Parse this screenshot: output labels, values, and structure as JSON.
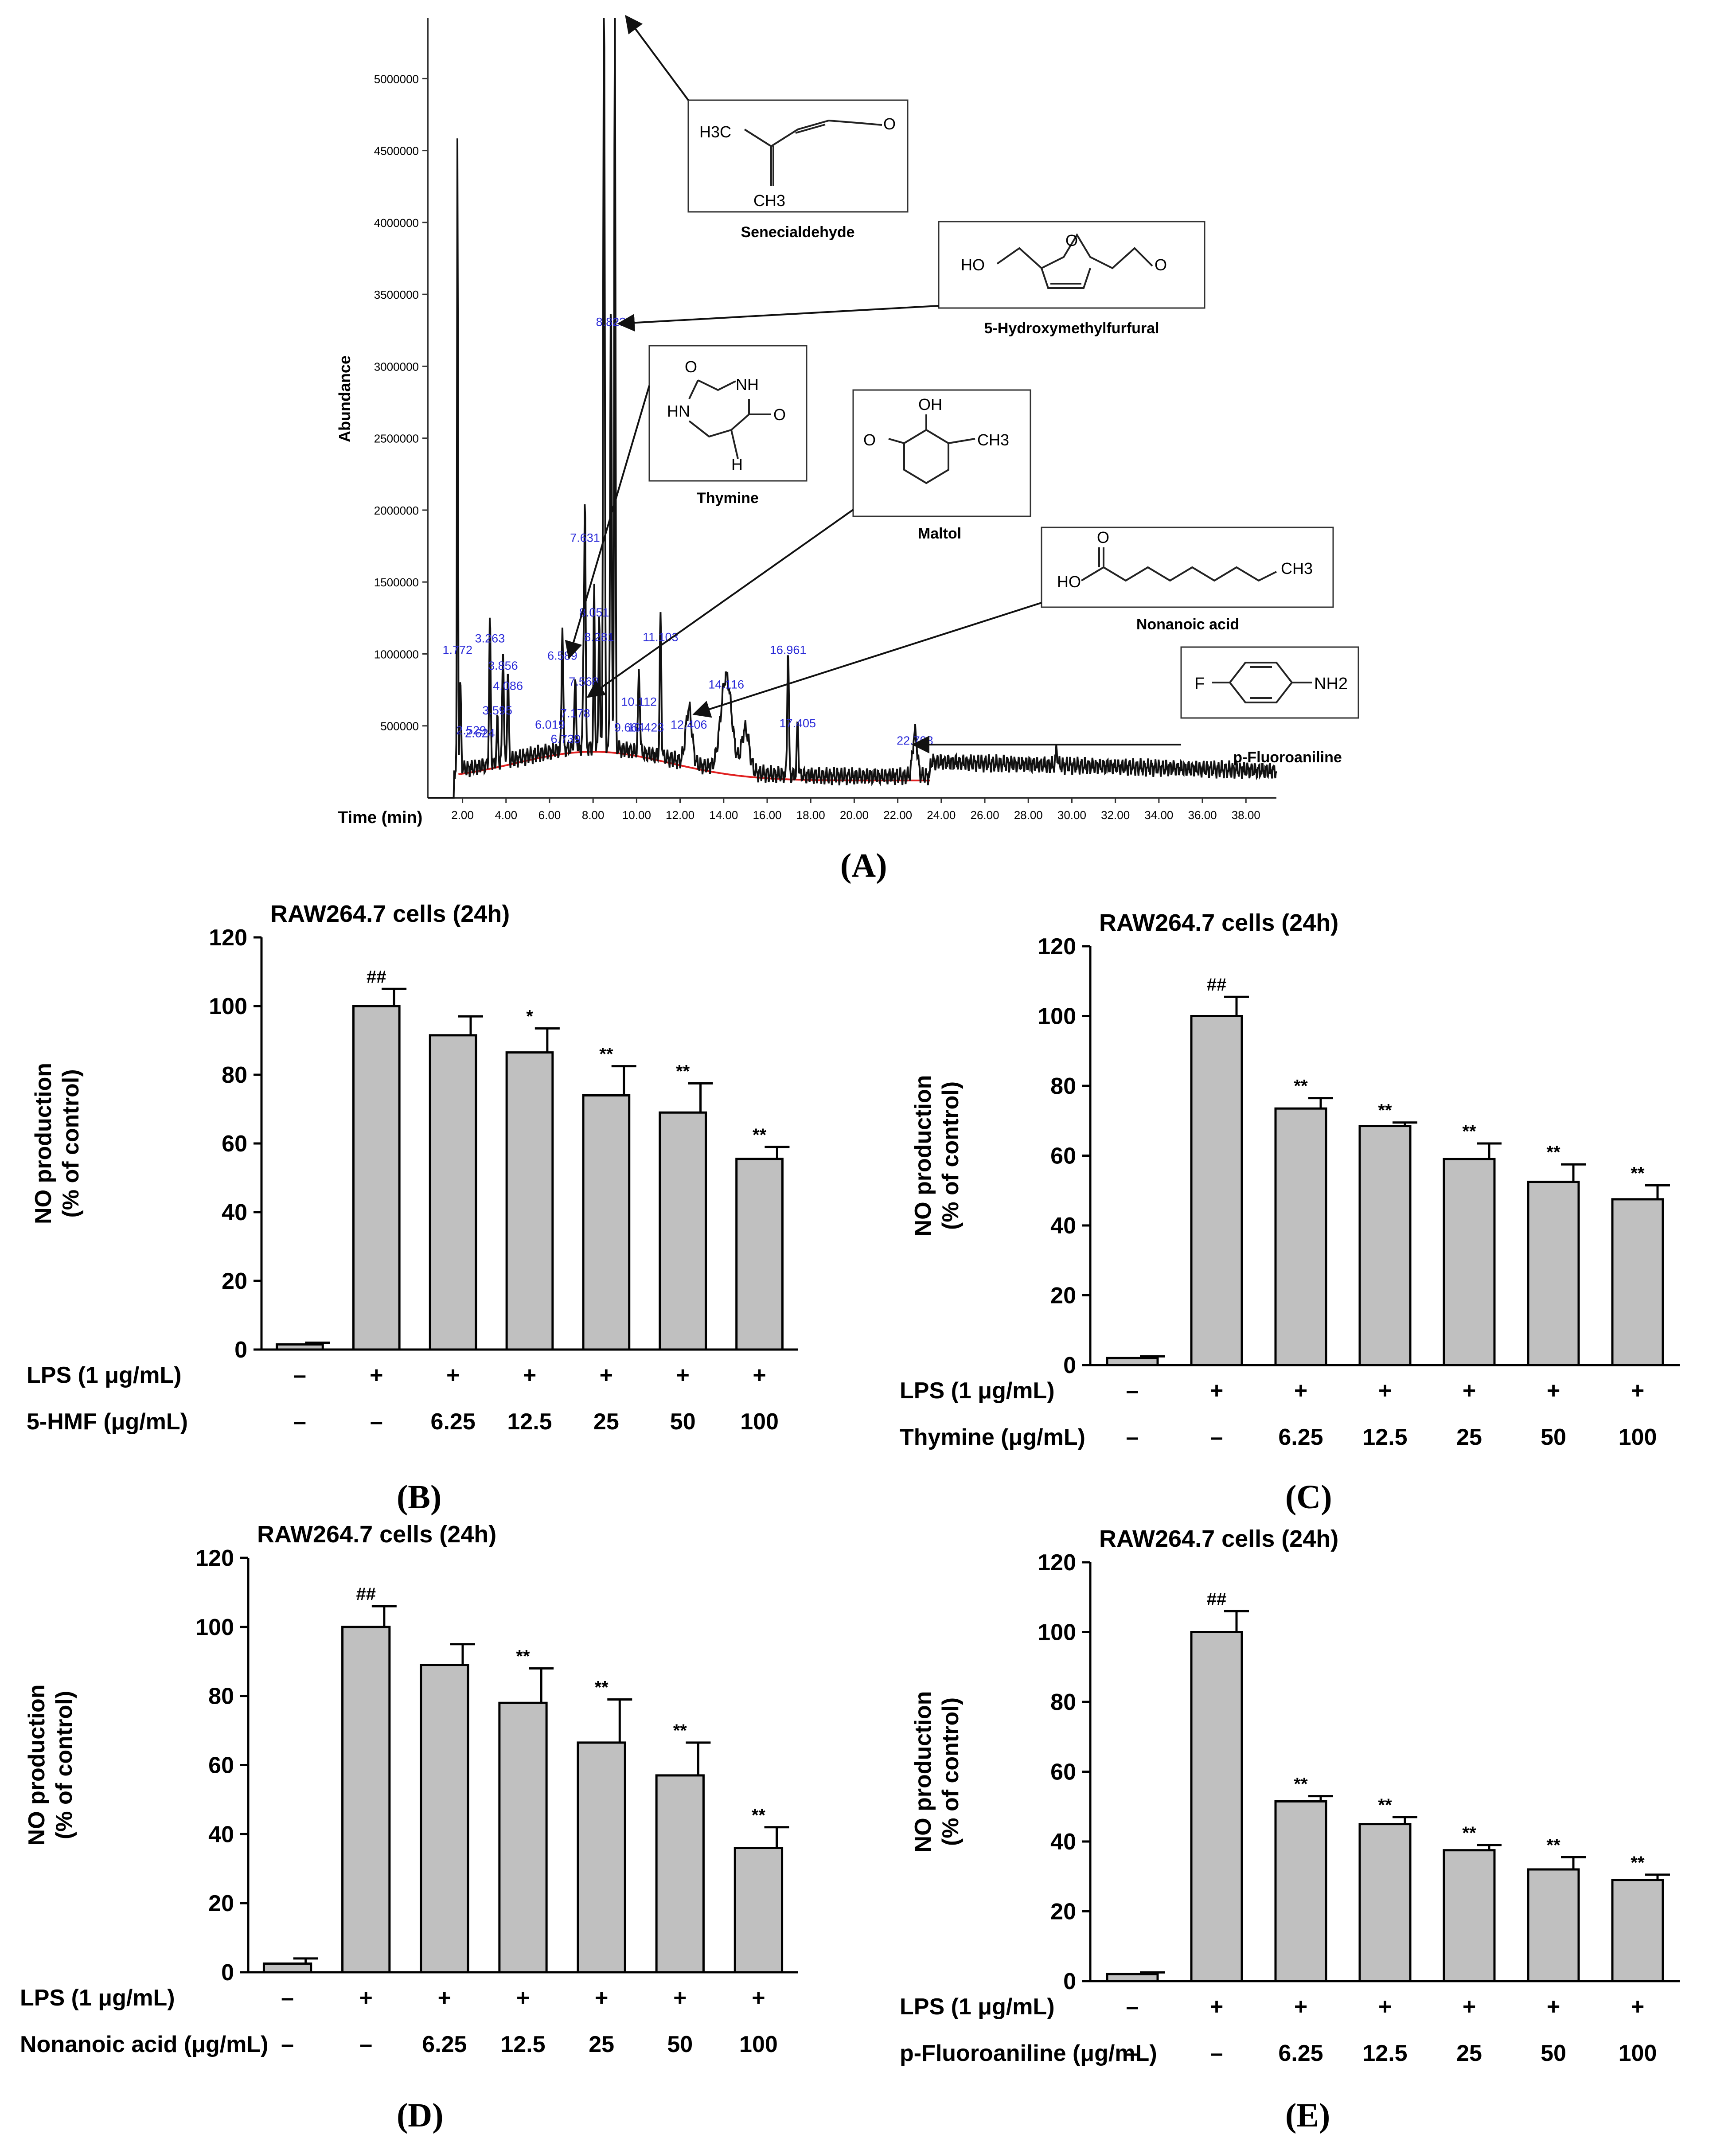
{
  "chromatogram": {
    "ylabel": "Abundance",
    "xlabel": "Time (min)",
    "y_ticks": [
      500000,
      1000000,
      1500000,
      2000000,
      2500000,
      3000000,
      3500000,
      4000000,
      4500000,
      5000000
    ],
    "x_ticks": [
      "2.00",
      "4.00",
      "6.00",
      "8.00",
      "10.00",
      "12.00",
      "14.00",
      "16.00",
      "18.00",
      "20.00",
      "22.00",
      "24.00",
      "26.00",
      "28.00",
      "30.00",
      "32.00",
      "34.00",
      "36.00",
      "38.00"
    ],
    "peak_labels": [
      {
        "text": "1.772",
        "t": 1.77,
        "a": 1000000
      },
      {
        "text": "2.529",
        "t": 2.4,
        "a": 440000
      },
      {
        "text": "2.624",
        "t": 2.8,
        "a": 420000
      },
      {
        "text": "3.263",
        "t": 3.26,
        "a": 1080000
      },
      {
        "text": "3.595",
        "t": 3.6,
        "a": 580000
      },
      {
        "text": "3.856",
        "t": 3.86,
        "a": 890000
      },
      {
        "text": "4.086",
        "t": 4.09,
        "a": 750000
      },
      {
        "text": "6.019",
        "t": 6.02,
        "a": 480000
      },
      {
        "text": "6.589",
        "t": 6.59,
        "a": 960000
      },
      {
        "text": "6.739",
        "t": 6.74,
        "a": 380000
      },
      {
        "text": "7.178",
        "t": 7.18,
        "a": 560000
      },
      {
        "text": "7.568",
        "t": 7.57,
        "a": 780000
      },
      {
        "text": "7.631",
        "t": 7.63,
        "a": 1780000
      },
      {
        "text": "8.051",
        "t": 8.05,
        "a": 1260000
      },
      {
        "text": "8.281",
        "t": 8.28,
        "a": 1090000
      },
      {
        "text": "8.823",
        "t": 8.82,
        "a": 3280000
      },
      {
        "text": "9.664",
        "t": 9.66,
        "a": 460000
      },
      {
        "text": "10.112",
        "t": 10.11,
        "a": 640000
      },
      {
        "text": "10.423",
        "t": 10.42,
        "a": 460000
      },
      {
        "text": "11.103",
        "t": 11.1,
        "a": 1090000
      },
      {
        "text": "12.406",
        "t": 12.4,
        "a": 480000
      },
      {
        "text": "14.116",
        "t": 14.12,
        "a": 760000
      },
      {
        "text": "16.961",
        "t": 16.96,
        "a": 1000000
      },
      {
        "text": "17.405",
        "t": 17.4,
        "a": 490000
      },
      {
        "text": "22.793",
        "t": 22.79,
        "a": 370000
      }
    ],
    "compounds": [
      {
        "name": "Senecialdehyde",
        "atoms": [
          "H3C",
          "CH3",
          "O"
        ]
      },
      {
        "name": "5-Hydroxymethylfurfural",
        "atoms": [
          "HO",
          "O",
          "O"
        ]
      },
      {
        "name": "Thymine",
        "atoms": [
          "O",
          "NH",
          "HN",
          "O",
          "H"
        ]
      },
      {
        "name": "Maltol",
        "atoms": [
          "OH",
          "O",
          "CH3"
        ]
      },
      {
        "name": "Nonanoic acid",
        "atoms": [
          "O",
          "HO",
          "CH3"
        ]
      },
      {
        "name": "p-Fluoroaniline",
        "atoms": [
          "F",
          "NH2"
        ]
      }
    ],
    "panel_label": "(A)"
  },
  "chart_data": [
    {
      "type": "bar",
      "title": "RAW264.7 cells (24h)",
      "ylabel": "NO production (% of control)",
      "ylim": [
        0,
        120
      ],
      "yticks": [
        0,
        20,
        40,
        60,
        80,
        100,
        120
      ],
      "row1_label": "LPS (1 μg/mL)",
      "row1": [
        "–",
        "+",
        "+",
        "+",
        "+",
        "+",
        "+"
      ],
      "row2_label": "5-HMF (μg/mL)",
      "row2": [
        "–",
        "–",
        "6.25",
        "12.5",
        "25",
        "50",
        "100"
      ],
      "values": [
        1.5,
        100,
        91.5,
        86.5,
        74,
        69,
        55.5
      ],
      "errors": [
        0.5,
        5,
        5.5,
        7,
        8.5,
        8.5,
        3.5
      ],
      "marks": [
        "",
        "##",
        "",
        "*",
        "**",
        "**",
        "**"
      ],
      "panel_label": "(B)"
    },
    {
      "type": "bar",
      "title": "RAW264.7 cells (24h)",
      "ylabel": "NO production (% of control)",
      "ylim": [
        0,
        120
      ],
      "yticks": [
        0,
        20,
        40,
        60,
        80,
        100,
        120
      ],
      "row1_label": "LPS (1 μg/mL)",
      "row1": [
        "–",
        "+",
        "+",
        "+",
        "+",
        "+",
        "+"
      ],
      "row2_label": "Thymine (μg/mL)",
      "row2": [
        "–",
        "–",
        "6.25",
        "12.5",
        "25",
        "50",
        "100"
      ],
      "values": [
        2,
        100,
        73.5,
        68.5,
        59,
        52.5,
        47.5
      ],
      "errors": [
        0.5,
        5.5,
        3,
        1,
        4.5,
        5,
        4
      ],
      "marks": [
        "",
        "##",
        "**",
        "**",
        "**",
        "**",
        "**"
      ],
      "panel_label": "(C)"
    },
    {
      "type": "bar",
      "title": "RAW264.7 cells (24h)",
      "ylabel": "NO production (% of control)",
      "ylim": [
        0,
        120
      ],
      "yticks": [
        0,
        20,
        40,
        60,
        80,
        100,
        120
      ],
      "row1_label": "LPS (1 μg/mL)",
      "row1": [
        "–",
        "+",
        "+",
        "+",
        "+",
        "+",
        "+"
      ],
      "row2_label": "Nonanoic acid (μg/mL)",
      "row2": [
        "–",
        "–",
        "6.25",
        "12.5",
        "25",
        "50",
        "100"
      ],
      "values": [
        2.5,
        100,
        89,
        78,
        66.5,
        57,
        36
      ],
      "errors": [
        1.5,
        6,
        6,
        10,
        12.5,
        9.5,
        6
      ],
      "marks": [
        "",
        "##",
        "",
        "**",
        "**",
        "**",
        "**"
      ],
      "panel_label": "(D)"
    },
    {
      "type": "bar",
      "title": "RAW264.7 cells (24h)",
      "ylabel": "NO production (% of control)",
      "ylim": [
        0,
        120
      ],
      "yticks": [
        0,
        20,
        40,
        60,
        80,
        100,
        120
      ],
      "row1_label": "LPS (1 μg/mL)",
      "row1": [
        "–",
        "+",
        "+",
        "+",
        "+",
        "+",
        "+"
      ],
      "row2_label": "p-Fluoroaniline (μg/mL)",
      "row2": [
        "–",
        "–",
        "6.25",
        "12.5",
        "25",
        "50",
        "100"
      ],
      "values": [
        2,
        100,
        51.5,
        45,
        37.5,
        32,
        29
      ],
      "errors": [
        0.5,
        6,
        1.5,
        2,
        1.5,
        3.5,
        1.5
      ],
      "marks": [
        "",
        "##",
        "**",
        "**",
        "**",
        "**",
        "**"
      ],
      "panel_label": "(E)"
    }
  ]
}
